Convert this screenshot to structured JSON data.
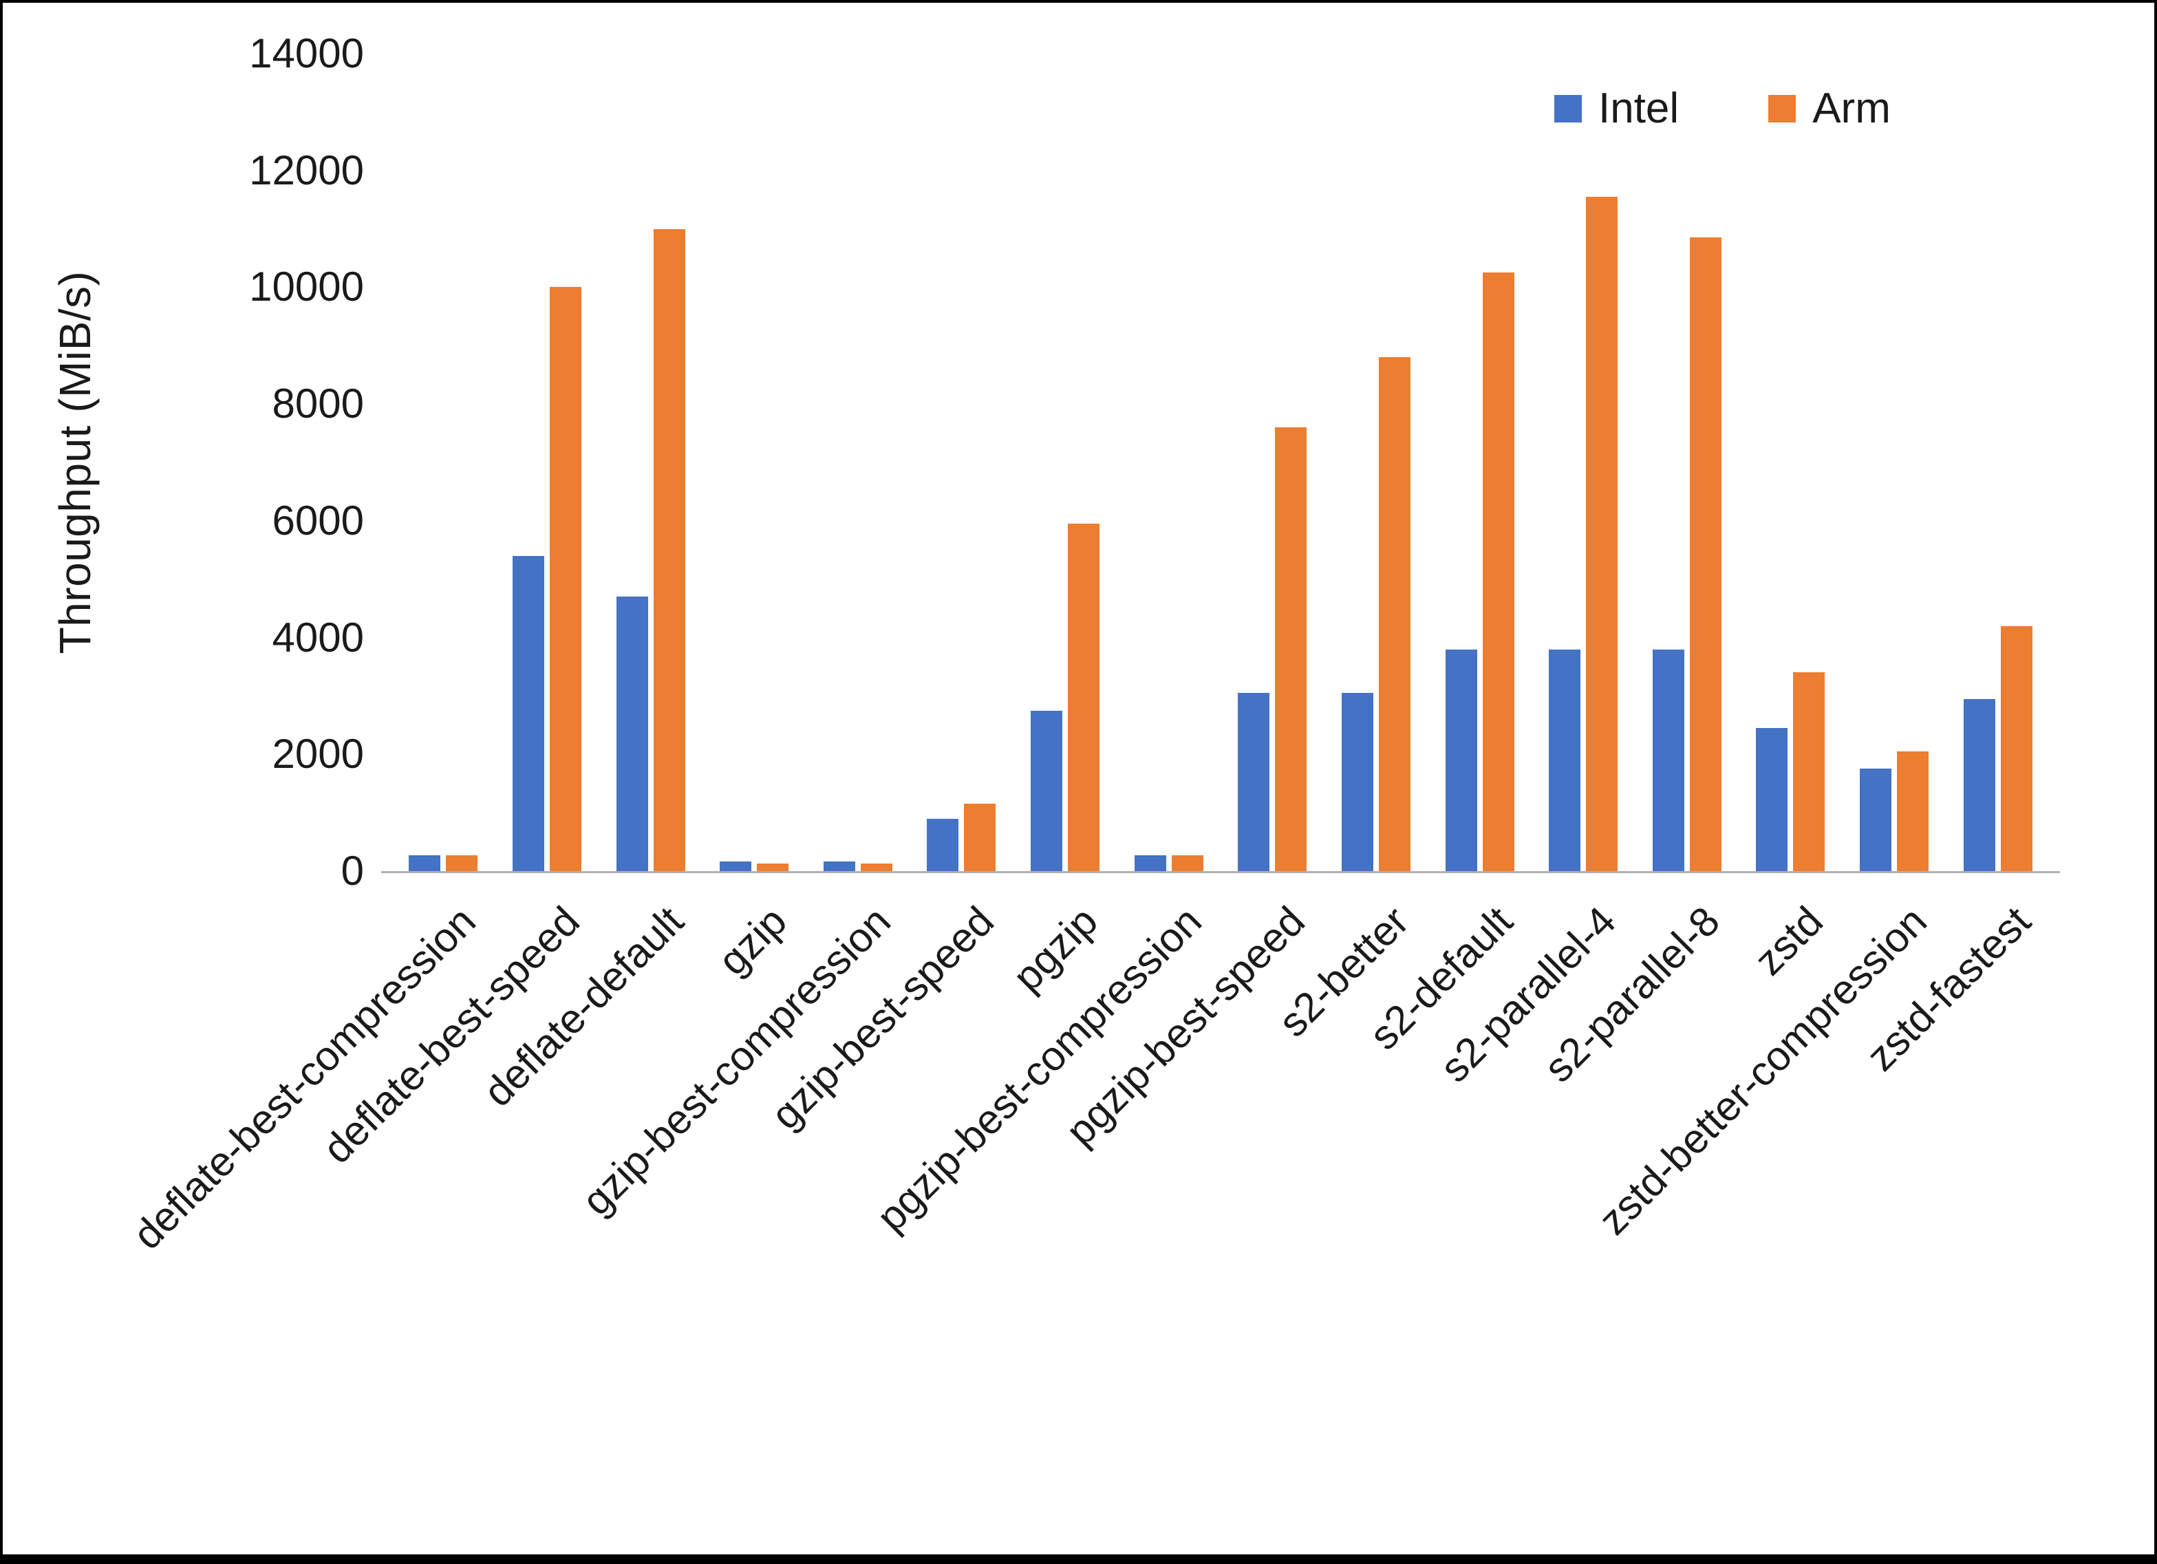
{
  "chart_data": {
    "type": "bar",
    "title": "",
    "xlabel": "",
    "ylabel": "Throughput (MiB/s)",
    "ylim": [
      0,
      14000
    ],
    "yticks": [
      0,
      2000,
      4000,
      6000,
      8000,
      10000,
      12000,
      14000
    ],
    "grid": false,
    "legend_position": "top-right",
    "categories": [
      "deflate-best-compression",
      "deflate-best-speed",
      "deflate-default",
      "gzip",
      "gzip-best-compression",
      "gzip-best-speed",
      "pgzip",
      "pgzip-best-compression",
      "pgzip-best-speed",
      "s2-better",
      "s2-default",
      "s2-parallel-4",
      "s2-parallel-8",
      "zstd",
      "zstd-better-compression",
      "zstd-fastest"
    ],
    "series": [
      {
        "name": "Intel",
        "color": "#4472C4",
        "values": [
          270,
          5400,
          4700,
          160,
          160,
          900,
          2750,
          270,
          3050,
          3050,
          3800,
          3800,
          3800,
          2450,
          1750,
          2950
        ]
      },
      {
        "name": "Arm",
        "color": "#ED7D31",
        "values": [
          270,
          10000,
          11000,
          130,
          130,
          1150,
          5950,
          270,
          7600,
          8800,
          10250,
          11550,
          10850,
          3400,
          2050,
          4200
        ]
      }
    ]
  }
}
